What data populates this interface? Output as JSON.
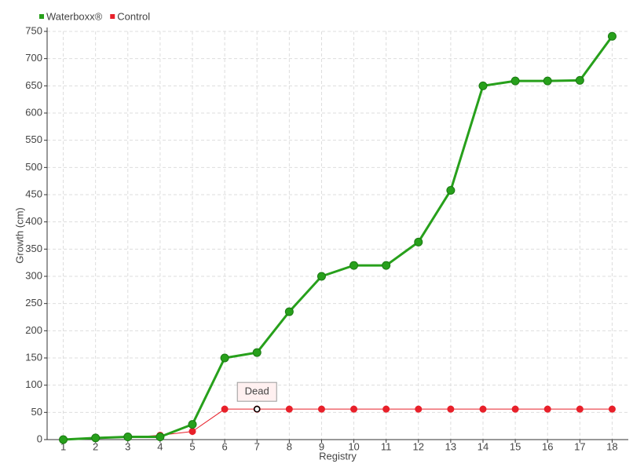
{
  "chart_data": {
    "type": "line",
    "x_label": "Registry",
    "y_label": "Growth (cm)",
    "x": [
      1,
      2,
      3,
      4,
      5,
      6,
      7,
      8,
      9,
      10,
      11,
      12,
      13,
      14,
      15,
      16,
      17,
      18
    ],
    "series": [
      {
        "name": "Waterboxx®",
        "color": "#27a01b",
        "values": [
          0,
          3,
          5,
          5,
          28,
          150,
          160,
          235,
          300,
          320,
          320,
          363,
          458,
          650,
          659,
          659,
          660,
          741
        ]
      },
      {
        "name": "Control",
        "color": "#e8202a",
        "values": [
          0,
          2,
          4,
          8,
          15,
          56,
          56,
          56,
          56,
          56,
          56,
          56,
          56,
          56,
          56,
          56,
          56,
          56
        ]
      }
    ],
    "annotations": [
      {
        "text": "Dead",
        "x": 7,
        "y": 56
      }
    ],
    "xlim": [
      0.5,
      18.5
    ],
    "xticks": [
      1,
      2,
      3,
      4,
      5,
      6,
      7,
      8,
      9,
      10,
      11,
      12,
      13,
      14,
      15,
      16,
      17,
      18
    ],
    "ylim": [
      0,
      750
    ],
    "yticks": [
      0,
      50,
      100,
      150,
      200,
      250,
      300,
      350,
      400,
      450,
      500,
      550,
      600,
      650,
      700,
      750
    ],
    "grid": true,
    "legend": "top-left"
  }
}
